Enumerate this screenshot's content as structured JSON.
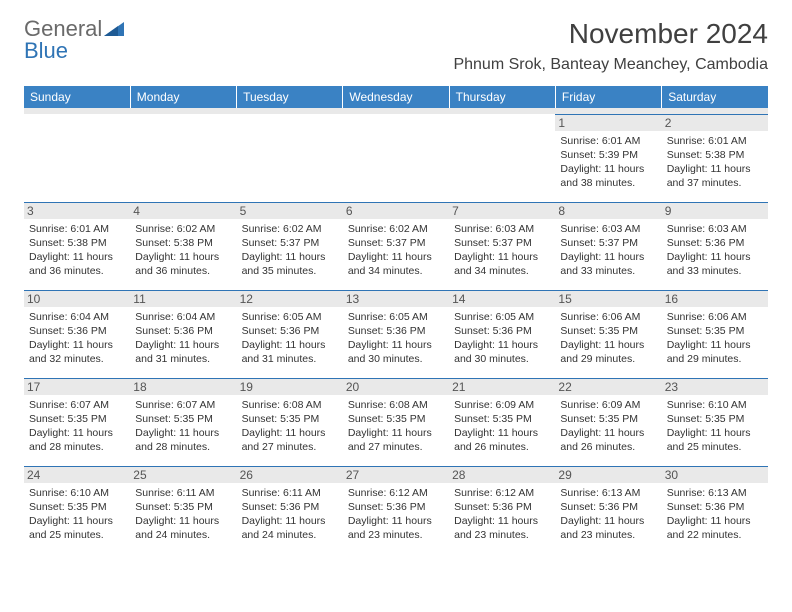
{
  "brand": {
    "part1": "General",
    "part2": "Blue"
  },
  "title": "November 2024",
  "location": "Phnum Srok, Banteay Meanchey, Cambodia",
  "colors": {
    "header_bg": "#3a82c4",
    "header_text": "#ffffff",
    "daynum_bg": "#e9e9e9",
    "cell_border": "#2f74b5",
    "logo_gray": "#6a6a6a",
    "logo_blue": "#2f74b5",
    "body_text": "#333333"
  },
  "daysOfWeek": [
    "Sunday",
    "Monday",
    "Tuesday",
    "Wednesday",
    "Thursday",
    "Friday",
    "Saturday"
  ],
  "startOffset": 5,
  "days": [
    {
      "n": 1,
      "sr": "6:01 AM",
      "ss": "5:39 PM",
      "dl": "11 hours and 38 minutes."
    },
    {
      "n": 2,
      "sr": "6:01 AM",
      "ss": "5:38 PM",
      "dl": "11 hours and 37 minutes."
    },
    {
      "n": 3,
      "sr": "6:01 AM",
      "ss": "5:38 PM",
      "dl": "11 hours and 36 minutes."
    },
    {
      "n": 4,
      "sr": "6:02 AM",
      "ss": "5:38 PM",
      "dl": "11 hours and 36 minutes."
    },
    {
      "n": 5,
      "sr": "6:02 AM",
      "ss": "5:37 PM",
      "dl": "11 hours and 35 minutes."
    },
    {
      "n": 6,
      "sr": "6:02 AM",
      "ss": "5:37 PM",
      "dl": "11 hours and 34 minutes."
    },
    {
      "n": 7,
      "sr": "6:03 AM",
      "ss": "5:37 PM",
      "dl": "11 hours and 34 minutes."
    },
    {
      "n": 8,
      "sr": "6:03 AM",
      "ss": "5:37 PM",
      "dl": "11 hours and 33 minutes."
    },
    {
      "n": 9,
      "sr": "6:03 AM",
      "ss": "5:36 PM",
      "dl": "11 hours and 33 minutes."
    },
    {
      "n": 10,
      "sr": "6:04 AM",
      "ss": "5:36 PM",
      "dl": "11 hours and 32 minutes."
    },
    {
      "n": 11,
      "sr": "6:04 AM",
      "ss": "5:36 PM",
      "dl": "11 hours and 31 minutes."
    },
    {
      "n": 12,
      "sr": "6:05 AM",
      "ss": "5:36 PM",
      "dl": "11 hours and 31 minutes."
    },
    {
      "n": 13,
      "sr": "6:05 AM",
      "ss": "5:36 PM",
      "dl": "11 hours and 30 minutes."
    },
    {
      "n": 14,
      "sr": "6:05 AM",
      "ss": "5:36 PM",
      "dl": "11 hours and 30 minutes."
    },
    {
      "n": 15,
      "sr": "6:06 AM",
      "ss": "5:35 PM",
      "dl": "11 hours and 29 minutes."
    },
    {
      "n": 16,
      "sr": "6:06 AM",
      "ss": "5:35 PM",
      "dl": "11 hours and 29 minutes."
    },
    {
      "n": 17,
      "sr": "6:07 AM",
      "ss": "5:35 PM",
      "dl": "11 hours and 28 minutes."
    },
    {
      "n": 18,
      "sr": "6:07 AM",
      "ss": "5:35 PM",
      "dl": "11 hours and 28 minutes."
    },
    {
      "n": 19,
      "sr": "6:08 AM",
      "ss": "5:35 PM",
      "dl": "11 hours and 27 minutes."
    },
    {
      "n": 20,
      "sr": "6:08 AM",
      "ss": "5:35 PM",
      "dl": "11 hours and 27 minutes."
    },
    {
      "n": 21,
      "sr": "6:09 AM",
      "ss": "5:35 PM",
      "dl": "11 hours and 26 minutes."
    },
    {
      "n": 22,
      "sr": "6:09 AM",
      "ss": "5:35 PM",
      "dl": "11 hours and 26 minutes."
    },
    {
      "n": 23,
      "sr": "6:10 AM",
      "ss": "5:35 PM",
      "dl": "11 hours and 25 minutes."
    },
    {
      "n": 24,
      "sr": "6:10 AM",
      "ss": "5:35 PM",
      "dl": "11 hours and 25 minutes."
    },
    {
      "n": 25,
      "sr": "6:11 AM",
      "ss": "5:35 PM",
      "dl": "11 hours and 24 minutes."
    },
    {
      "n": 26,
      "sr": "6:11 AM",
      "ss": "5:36 PM",
      "dl": "11 hours and 24 minutes."
    },
    {
      "n": 27,
      "sr": "6:12 AM",
      "ss": "5:36 PM",
      "dl": "11 hours and 23 minutes."
    },
    {
      "n": 28,
      "sr": "6:12 AM",
      "ss": "5:36 PM",
      "dl": "11 hours and 23 minutes."
    },
    {
      "n": 29,
      "sr": "6:13 AM",
      "ss": "5:36 PM",
      "dl": "11 hours and 23 minutes."
    },
    {
      "n": 30,
      "sr": "6:13 AM",
      "ss": "5:36 PM",
      "dl": "11 hours and 22 minutes."
    }
  ],
  "labels": {
    "sunrise": "Sunrise:",
    "sunset": "Sunset:",
    "daylight": "Daylight:"
  }
}
